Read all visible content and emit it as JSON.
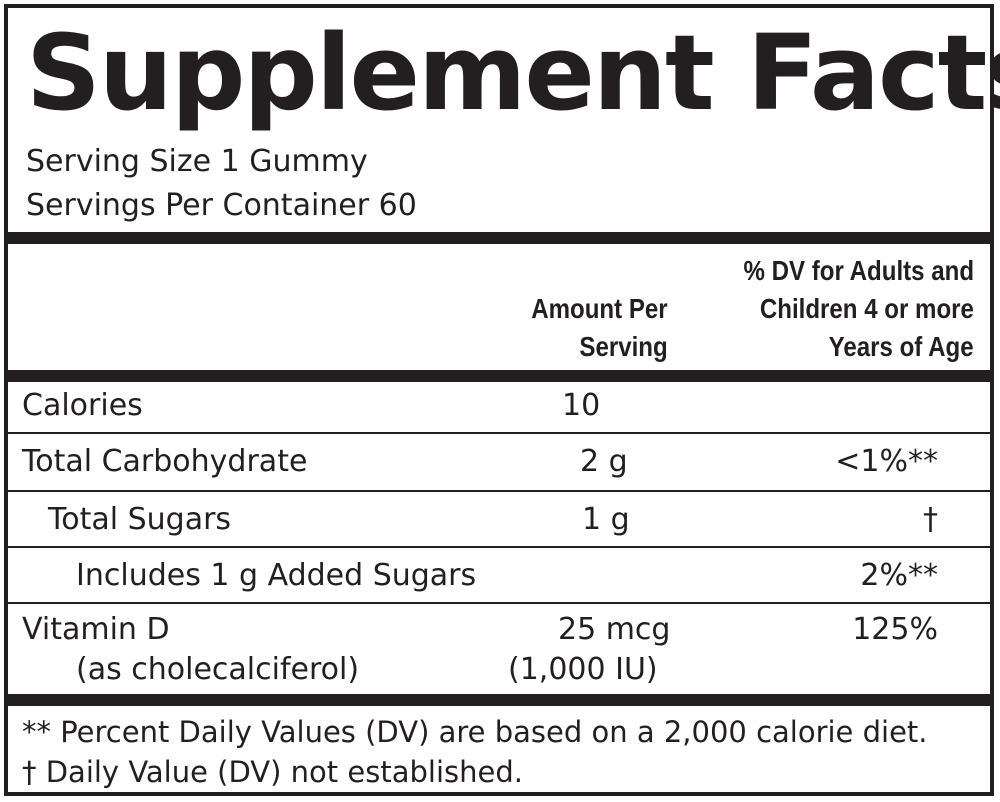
{
  "label": {
    "title": "Supplement Facts",
    "serving_size": "Serving Size 1 Gummy",
    "servings_per_container": "Servings Per Container 60"
  },
  "header": {
    "amount_line1": "Amount Per",
    "amount_line2": "Serving",
    "dv_line1": "% DV for Adults and",
    "dv_line2": "Children 4 or more",
    "dv_line3": "Years of Age"
  },
  "rows": [
    {
      "name": "Calories",
      "amount": "10",
      "dv": ""
    },
    {
      "name": "Total Carbohydrate",
      "amount": "2 g",
      "dv": "<1%**"
    },
    {
      "name": "Total Sugars",
      "amount": "1 g",
      "dv": "†"
    },
    {
      "name": "Includes 1 g Added Sugars",
      "amount": "",
      "dv": "2%**"
    },
    {
      "name": "Vitamin D",
      "subname": "(as cholecalciferol)",
      "amount": "25 mcg",
      "subamount": "(1,000 IU)",
      "dv": "125%"
    }
  ],
  "footnotes": {
    "dv_basis": "** Percent Daily Values (DV) are based on a 2,000 calorie diet.",
    "not_established": "† Daily Value (DV) not established."
  }
}
